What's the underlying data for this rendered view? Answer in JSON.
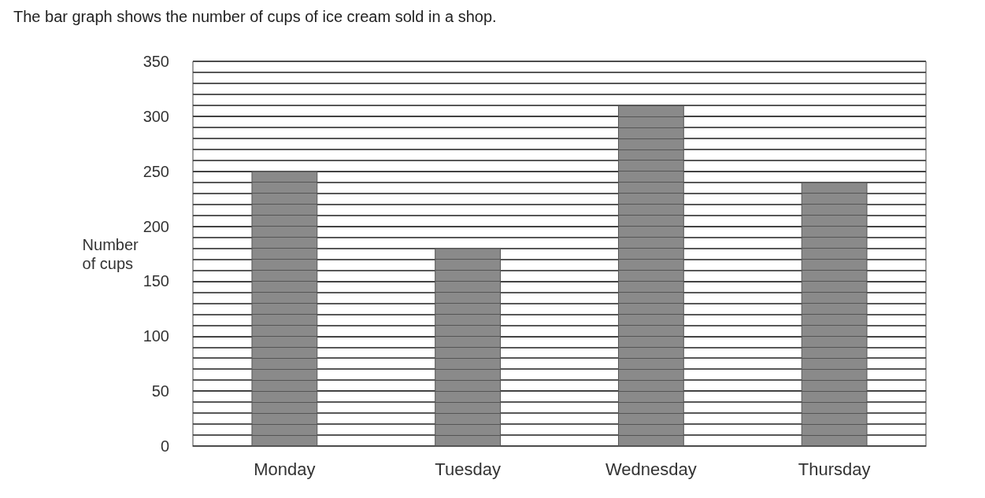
{
  "chart_data": {
    "type": "bar",
    "title": "The bar graph shows the number of cups of ice cream sold in a shop.",
    "ylabel": "Number\nof cups",
    "categories": [
      "Monday",
      "Tuesday",
      "Wednesday",
      "Thursday"
    ],
    "values": [
      250,
      180,
      310,
      240
    ],
    "color": "#8a8a8a",
    "ylim": [
      0,
      350
    ],
    "yticks": [
      0,
      50,
      100,
      150,
      200,
      250,
      300,
      350
    ],
    "grid": true
  }
}
